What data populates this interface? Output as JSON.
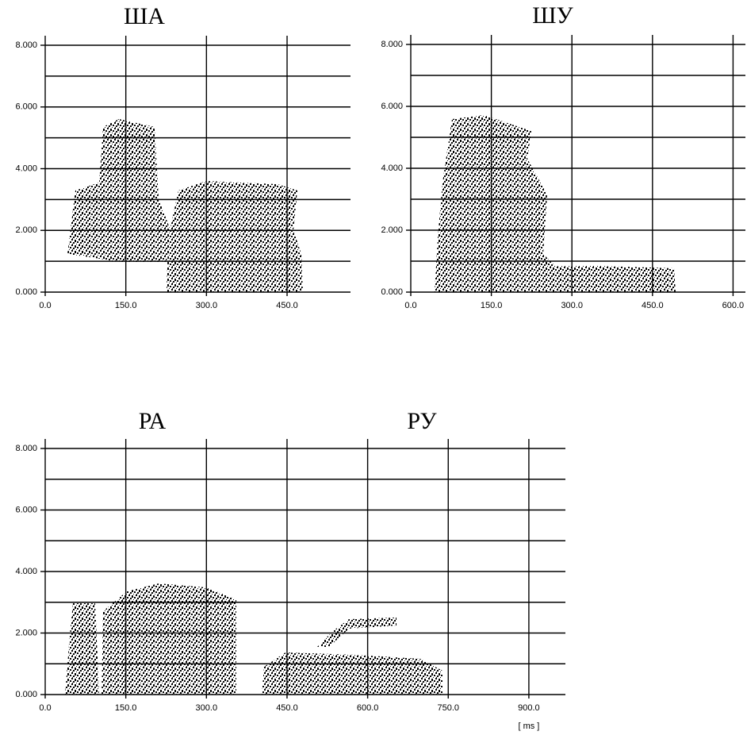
{
  "chart_data": [
    {
      "type": "spectrogram",
      "title": "ША",
      "xlim": [
        0,
        568
      ],
      "xticks": [
        {
          "value": 0,
          "label": "0.0"
        },
        {
          "value": 150,
          "label": "150.0"
        },
        {
          "value": 300,
          "label": "300.0"
        },
        {
          "value": 450,
          "label": "450.0"
        }
      ],
      "ylim": [
        0,
        8
      ],
      "yticks": [
        {
          "value": 0,
          "label": "0.000"
        },
        {
          "value": 2,
          "label": "2.000"
        },
        {
          "value": 4,
          "label": "4.000"
        },
        {
          "value": 6,
          "label": "6.000"
        },
        {
          "value": 8,
          "label": "8.000"
        }
      ],
      "ygrid": [
        1,
        2,
        3,
        4,
        5,
        6,
        7,
        8
      ],
      "grid": true
    },
    {
      "type": "spectrogram",
      "title": "ШУ",
      "xlim": [
        0,
        623
      ],
      "xticks": [
        {
          "value": 0,
          "label": "0.0"
        },
        {
          "value": 150,
          "label": "150.0"
        },
        {
          "value": 300,
          "label": "300.0"
        },
        {
          "value": 450,
          "label": "450.0"
        },
        {
          "value": 600,
          "label": "600.0"
        }
      ],
      "ylim": [
        0,
        8
      ],
      "yticks": [
        {
          "value": 0,
          "label": "0.000"
        },
        {
          "value": 2,
          "label": "2.000"
        },
        {
          "value": 4,
          "label": "4.000"
        },
        {
          "value": 6,
          "label": "6.000"
        },
        {
          "value": 8,
          "label": "8.000"
        }
      ],
      "ygrid": [
        1,
        2,
        3,
        4,
        5,
        6,
        7,
        8
      ],
      "grid": true
    },
    {
      "type": "spectrogram",
      "titles": [
        "РА",
        "РУ"
      ],
      "x_label": "[ ms ]",
      "xlim": [
        0,
        968
      ],
      "xticks": [
        {
          "value": 0,
          "label": "0.0"
        },
        {
          "value": 150,
          "label": "150.0"
        },
        {
          "value": 300,
          "label": "300.0"
        },
        {
          "value": 450,
          "label": "450.0"
        },
        {
          "value": 600,
          "label": "600.0"
        },
        {
          "value": 750,
          "label": "750.0"
        },
        {
          "value": 900,
          "label": "900.0"
        }
      ],
      "ylim": [
        0,
        8
      ],
      "yticks": [
        {
          "value": 0,
          "label": "0.000"
        },
        {
          "value": 2,
          "label": "2.000"
        },
        {
          "value": 4,
          "label": "4.000"
        },
        {
          "value": 6,
          "label": "6.000"
        },
        {
          "value": 8,
          "label": "8.000"
        }
      ],
      "ygrid": [
        1,
        2,
        3,
        4,
        5,
        6,
        7,
        8
      ],
      "grid": true
    }
  ]
}
